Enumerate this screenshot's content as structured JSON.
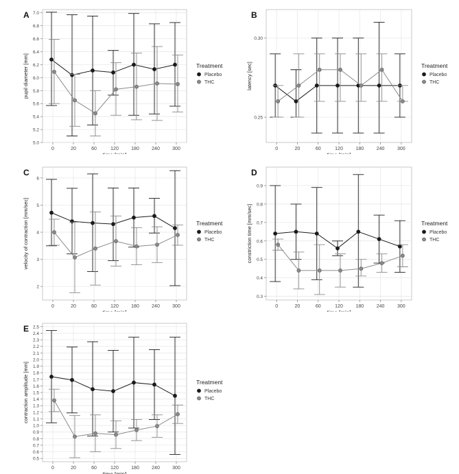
{
  "legend": {
    "title": "Treatment",
    "items": [
      "Placebo",
      "THC"
    ]
  },
  "chart_data": [
    {
      "panel": "A",
      "type": "line",
      "title": "",
      "xlabel": "time [min]",
      "ylabel": "pupil diameter [mm]",
      "categories": [
        "0",
        "20",
        "60",
        "120",
        "180",
        "240",
        "300"
      ],
      "ylim": [
        5.0,
        7.05
      ],
      "yticks": [
        "5.0",
        "5.2",
        "5.4",
        "5.6",
        "5.8",
        "6.0",
        "6.2",
        "6.4",
        "6.6",
        "6.8",
        "7.0"
      ],
      "series": [
        {
          "name": "Placebo",
          "values": [
            6.28,
            6.04,
            6.11,
            6.08,
            6.2,
            6.13,
            6.2
          ],
          "err_low": [
            5.57,
            5.1,
            5.27,
            5.73,
            5.42,
            5.44,
            5.56
          ],
          "err_high": [
            7.01,
            6.97,
            6.95,
            6.42,
            6.99,
            6.83,
            6.85
          ]
        },
        {
          "name": "THC",
          "values": [
            6.09,
            5.65,
            5.45,
            5.82,
            5.86,
            5.91,
            5.9
          ],
          "err_low": [
            5.6,
            5.25,
            5.1,
            5.42,
            5.35,
            5.34,
            5.47
          ],
          "err_high": [
            6.59,
            6.05,
            5.8,
            6.23,
            6.38,
            6.48,
            6.35
          ]
        }
      ]
    },
    {
      "panel": "B",
      "type": "line",
      "title": "",
      "xlabel": "time [min]",
      "ylabel": "latency [sec]",
      "categories": [
        "0",
        "20",
        "60",
        "120",
        "180",
        "240",
        "300"
      ],
      "ylim": [
        0.234,
        0.318
      ],
      "yticks": [
        "0.25",
        "0.30"
      ],
      "series": [
        {
          "name": "Placebo",
          "values": [
            0.27,
            0.26,
            0.27,
            0.27,
            0.27,
            0.27,
            0.27
          ],
          "err_low": [
            0.25,
            0.25,
            0.24,
            0.24,
            0.24,
            0.24,
            0.25
          ],
          "err_high": [
            0.29,
            0.28,
            0.3,
            0.3,
            0.3,
            0.31,
            0.29
          ]
        },
        {
          "name": "THC",
          "values": [
            0.26,
            0.27,
            0.28,
            0.28,
            0.27,
            0.28,
            0.26
          ],
          "err_low": [
            0.25,
            0.25,
            0.26,
            0.26,
            0.26,
            0.26,
            0.26
          ],
          "err_high": [
            0.27,
            0.29,
            0.29,
            0.29,
            0.29,
            0.29,
            0.27
          ]
        }
      ]
    },
    {
      "panel": "C",
      "type": "line",
      "title": "",
      "xlabel": "time [min]",
      "ylabel": "velocity of contraction [mm/sec]",
      "categories": [
        "0",
        "20",
        "60",
        "120",
        "180",
        "240",
        "300"
      ],
      "ylim": [
        1.5,
        6.4
      ],
      "yticks": [
        "2",
        "3",
        "4",
        "5",
        "6"
      ],
      "series": [
        {
          "name": "Placebo",
          "values": [
            4.72,
            4.4,
            4.34,
            4.3,
            4.54,
            4.6,
            4.15
          ],
          "err_low": [
            3.5,
            3.2,
            2.55,
            2.95,
            3.45,
            3.97,
            2.03
          ],
          "err_high": [
            5.95,
            5.62,
            6.15,
            5.63,
            5.63,
            5.25,
            6.27
          ]
        },
        {
          "name": "THC",
          "values": [
            4.0,
            3.07,
            3.4,
            3.67,
            3.48,
            3.54,
            3.9
          ],
          "err_low": [
            3.52,
            1.77,
            2.05,
            2.75,
            2.8,
            2.88,
            3.52
          ],
          "err_high": [
            4.48,
            4.37,
            4.75,
            4.6,
            4.17,
            4.2,
            4.27
          ]
        }
      ]
    },
    {
      "panel": "D",
      "type": "line",
      "title": "",
      "xlabel": "time [min]",
      "ylabel": "constriction time [mm/sec]",
      "categories": [
        "0",
        "20",
        "60",
        "120",
        "180",
        "240",
        "300"
      ],
      "ylim": [
        0.28,
        1.0
      ],
      "yticks": [
        "0.3",
        "0.4",
        "0.5",
        "0.6",
        "0.7",
        "0.8",
        "0.9"
      ],
      "series": [
        {
          "name": "Placebo",
          "values": [
            0.64,
            0.65,
            0.64,
            0.56,
            0.65,
            0.61,
            0.57
          ],
          "err_low": [
            0.38,
            0.5,
            0.39,
            0.52,
            0.35,
            0.48,
            0.43
          ],
          "err_high": [
            0.9,
            0.8,
            0.89,
            0.6,
            0.96,
            0.74,
            0.71
          ]
        },
        {
          "name": "THC",
          "values": [
            0.58,
            0.44,
            0.44,
            0.44,
            0.45,
            0.48,
            0.52
          ],
          "err_low": [
            0.55,
            0.34,
            0.31,
            0.35,
            0.41,
            0.43,
            0.46
          ],
          "err_high": [
            0.61,
            0.54,
            0.58,
            0.53,
            0.5,
            0.53,
            0.58
          ]
        }
      ]
    },
    {
      "panel": "E",
      "type": "line",
      "title": "",
      "xlabel": "time [min]",
      "ylabel": "contraction amplitude [mm]",
      "categories": [
        "0",
        "20",
        "60",
        "120",
        "180",
        "240",
        "300"
      ],
      "ylim": [
        0.45,
        2.55
      ],
      "yticks": [
        "0.5",
        "0.6",
        "0.7",
        "0.8",
        "0.9",
        "1.0",
        "1.1",
        "1.2",
        "1.3",
        "1.4",
        "1.5",
        "1.6",
        "1.7",
        "1.8",
        "1.9",
        "2.0",
        "2.1",
        "2.2",
        "2.3",
        "2.4",
        "2.5"
      ],
      "series": [
        {
          "name": "Placebo",
          "values": [
            1.74,
            1.69,
            1.55,
            1.52,
            1.65,
            1.62,
            1.45
          ],
          "err_low": [
            1.04,
            1.19,
            0.84,
            0.9,
            0.96,
            1.09,
            0.56
          ],
          "err_high": [
            2.44,
            2.19,
            2.27,
            2.14,
            2.34,
            2.15,
            2.34
          ]
        },
        {
          "name": "THC",
          "values": [
            1.38,
            0.83,
            0.88,
            0.86,
            0.93,
            0.99,
            1.17
          ],
          "err_low": [
            1.21,
            0.51,
            0.6,
            0.65,
            0.77,
            0.82,
            1.03
          ],
          "err_high": [
            1.55,
            1.15,
            1.16,
            1.07,
            1.09,
            1.16,
            1.31
          ]
        }
      ]
    }
  ]
}
